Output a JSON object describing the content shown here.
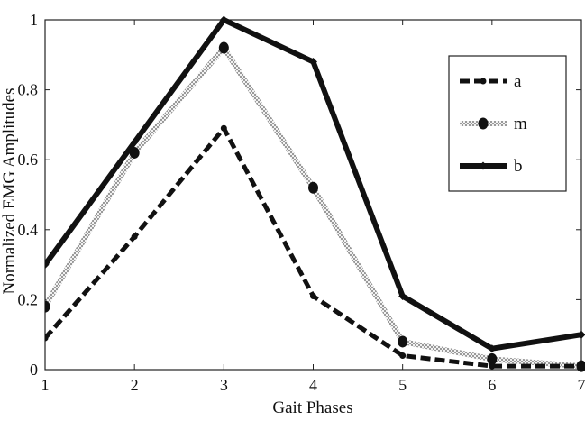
{
  "chart_data": {
    "type": "line",
    "title": "",
    "xlabel": "Gait Phases",
    "ylabel": "Normalized EMG Amplitudes",
    "x": [
      1,
      2,
      3,
      4,
      5,
      6,
      7
    ],
    "xlim": [
      1,
      7
    ],
    "ylim": [
      0,
      1
    ],
    "x_ticks": [
      "1",
      "2",
      "3",
      "4",
      "5",
      "6",
      "7"
    ],
    "y_ticks": [
      0,
      0.2,
      0.4,
      0.6,
      0.8,
      1
    ],
    "y_tick_labels": [
      "0",
      "0.2",
      "0.4",
      "0.6",
      "0.8",
      "1"
    ],
    "grid": false,
    "legend_position": "top-right",
    "series": [
      {
        "name": "a",
        "style": "dashed",
        "marker": "small-dot",
        "color": "#111111",
        "values": [
          0.09,
          0.38,
          0.69,
          0.21,
          0.04,
          0.01,
          0.01
        ]
      },
      {
        "name": "m",
        "style": "dotted",
        "marker": "big-dot",
        "color": "#111111",
        "values": [
          0.18,
          0.62,
          0.92,
          0.52,
          0.08,
          0.03,
          0.01
        ]
      },
      {
        "name": "b",
        "style": "solid",
        "marker": "small-diamond",
        "color": "#111111",
        "values": [
          0.3,
          0.65,
          1.0,
          0.88,
          0.21,
          0.06,
          0.1
        ]
      }
    ]
  }
}
